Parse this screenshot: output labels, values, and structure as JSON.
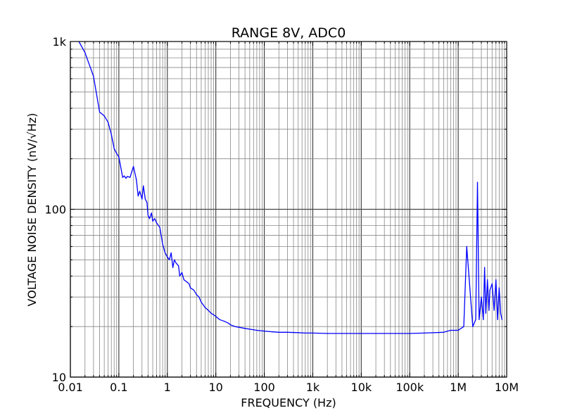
{
  "chart_data": {
    "type": "line",
    "title": "RANGE 8V, ADC0",
    "xlabel": "FREQUENCY (Hz)",
    "ylabel": "VOLTAGE NOISE DENSITY (nV/√Hz)",
    "x_scale": "log",
    "y_scale": "log",
    "xlim": [
      0.01,
      10000000
    ],
    "ylim": [
      10,
      1000
    ],
    "x_ticks": [
      {
        "value": 0.01,
        "label": "0.01"
      },
      {
        "value": 0.1,
        "label": "0.1"
      },
      {
        "value": 1,
        "label": "1"
      },
      {
        "value": 10,
        "label": "10"
      },
      {
        "value": 100,
        "label": "100"
      },
      {
        "value": 1000,
        "label": "1k"
      },
      {
        "value": 10000,
        "label": "10k"
      },
      {
        "value": 100000,
        "label": "100k"
      },
      {
        "value": 1000000,
        "label": "1M"
      },
      {
        "value": 10000000,
        "label": "10M"
      }
    ],
    "y_ticks": [
      {
        "value": 10,
        "label": "10"
      },
      {
        "value": 100,
        "label": "100"
      },
      {
        "value": 1000,
        "label": "1k"
      }
    ],
    "grid": true,
    "line_color": "#0000ff",
    "series": [
      {
        "x": [
          0.015,
          0.02,
          0.03,
          0.04,
          0.05,
          0.06,
          0.07,
          0.08,
          0.09,
          0.1,
          0.12,
          0.13,
          0.14,
          0.15,
          0.17,
          0.2,
          0.23,
          0.25,
          0.27,
          0.3,
          0.32,
          0.35,
          0.38,
          0.4,
          0.43,
          0.47,
          0.5,
          0.55,
          0.6,
          0.7,
          0.8,
          0.9,
          1.0,
          1.1,
          1.2,
          1.3,
          1.4,
          1.5,
          1.7,
          1.8,
          2.0,
          2.2,
          2.5,
          2.8,
          3.0,
          3.5,
          4.0,
          4.5,
          5.0,
          6.0,
          7.0,
          8.0,
          9.0,
          10,
          12,
          15,
          18,
          20,
          25,
          30,
          40,
          50,
          70,
          100,
          150,
          200,
          300,
          500,
          700,
          1000,
          2000,
          5000,
          10000,
          20000,
          50000,
          100000,
          200000,
          500000,
          700000,
          1000000,
          1300000,
          1500000,
          2000000,
          2300000,
          2500000,
          2700000,
          3000000,
          3300000,
          3500000,
          3700000,
          4000000,
          4300000,
          4500000,
          5000000,
          5500000,
          6000000,
          6500000,
          7000000,
          7500000,
          8000000
        ],
        "y": [
          1000,
          860,
          620,
          380,
          360,
          330,
          280,
          230,
          215,
          205,
          155,
          158,
          153,
          157,
          155,
          180,
          150,
          120,
          128,
          115,
          138,
          115,
          110,
          92,
          88,
          95,
          85,
          88,
          83,
          78,
          62,
          55,
          52,
          50,
          55,
          45,
          50,
          48,
          46,
          40,
          42,
          38,
          37,
          36,
          34,
          33,
          31,
          30,
          28,
          26,
          25,
          24,
          23.5,
          23,
          22,
          21.5,
          21,
          20.5,
          20,
          19.8,
          19.5,
          19.3,
          19,
          18.8,
          18.6,
          18.5,
          18.5,
          18.4,
          18.3,
          18.3,
          18.2,
          18.2,
          18.2,
          18.2,
          18.2,
          18.2,
          18.3,
          18.5,
          19,
          19,
          20,
          60,
          20,
          22,
          145,
          22,
          30,
          22,
          45,
          24,
          38,
          25,
          33,
          36,
          25,
          38,
          22,
          34,
          24,
          22
        ]
      }
    ]
  }
}
